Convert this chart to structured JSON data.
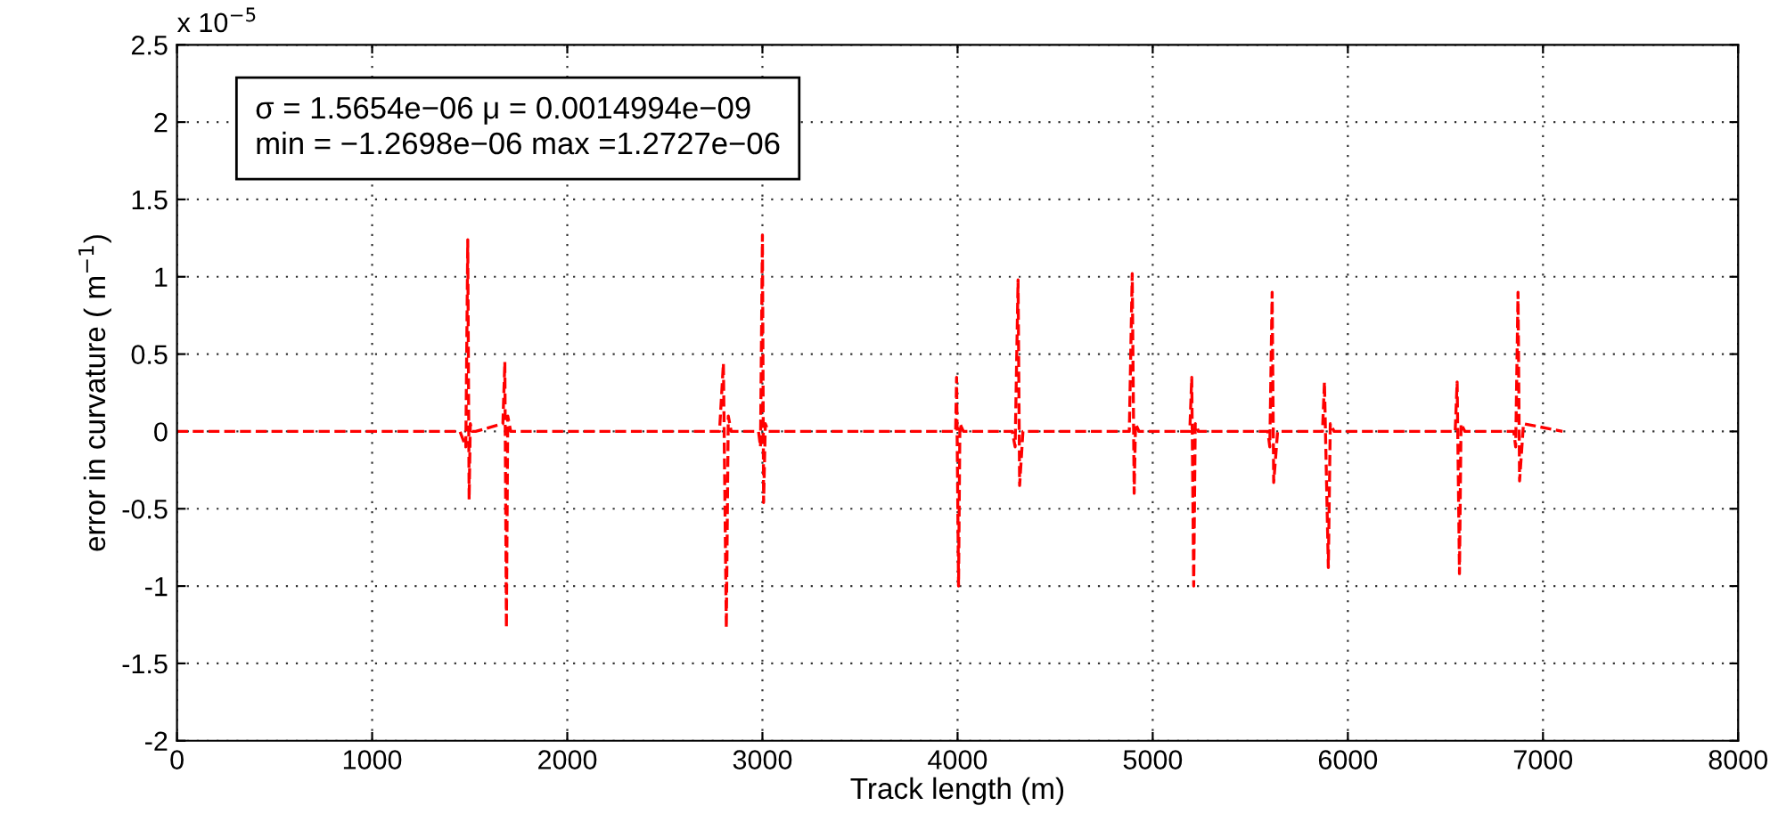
{
  "chart_data": {
    "type": "line",
    "xlabel": "Track length (m)",
    "ylabel": "error in curvature ( m$^{−1}$)",
    "annotations": [
      "x 10$^{−5}$",
      "σ = 1.5654e−06 μ = 0.0014994e−09",
      "min = −1.2698e−06 max =1.2727e−06"
    ],
    "series": [
      {
        "color": "#ff0000",
        "x": [
          0,
          1450,
          1480,
          1490,
          1497,
          1503,
          1512,
          1530,
          1670,
          1680,
          1688,
          1695,
          1710,
          2780,
          2800,
          2815,
          2825,
          2840,
          2980,
          2990,
          3000,
          3006,
          3015,
          3030,
          3990,
          3995,
          4005,
          4012,
          4030,
          4280,
          4295,
          4310,
          4318,
          4335,
          4880,
          4895,
          4905,
          4912,
          4930,
          5190,
          5200,
          5210,
          5218,
          5235,
          5590,
          5600,
          5612,
          5620,
          5640,
          5870,
          5880,
          5900,
          5910,
          5930,
          6550,
          6560,
          6572,
          6580,
          6600,
          6850,
          6860,
          6872,
          6880,
          6900,
          7100
        ],
        "values": [
          0,
          0,
          -0.1,
          1.24,
          -0.44,
          0.05,
          0,
          0,
          0.05,
          0.45,
          -1.27,
          0.1,
          0,
          0,
          0.44,
          -1.27,
          0.1,
          0,
          0,
          -0.1,
          1.27,
          -0.46,
          0.05,
          0,
          0,
          0.35,
          -1.0,
          0.05,
          0,
          0,
          -0.1,
          0.98,
          -0.35,
          0,
          0,
          1.02,
          -0.4,
          0.05,
          0,
          0,
          0.35,
          -1.0,
          0.05,
          0,
          0,
          -0.1,
          0.9,
          -0.33,
          0,
          0,
          0.32,
          -0.88,
          0.05,
          0,
          0,
          0.32,
          -0.92,
          0.05,
          0,
          0,
          -0.1,
          0.9,
          -0.32,
          0.05,
          0
        ]
      }
    ],
    "xlim": [
      0,
      8000
    ],
    "xticks": [
      0,
      1000,
      2000,
      3000,
      4000,
      5000,
      6000,
      7000,
      8000
    ],
    "ylim": [
      -2,
      2.5
    ],
    "yticks": [
      -2,
      -1.5,
      -1,
      -0.5,
      0,
      0.5,
      1,
      1.5,
      2,
      2.5
    ],
    "grid": true,
    "line_style": "dashed",
    "marker": "none"
  }
}
